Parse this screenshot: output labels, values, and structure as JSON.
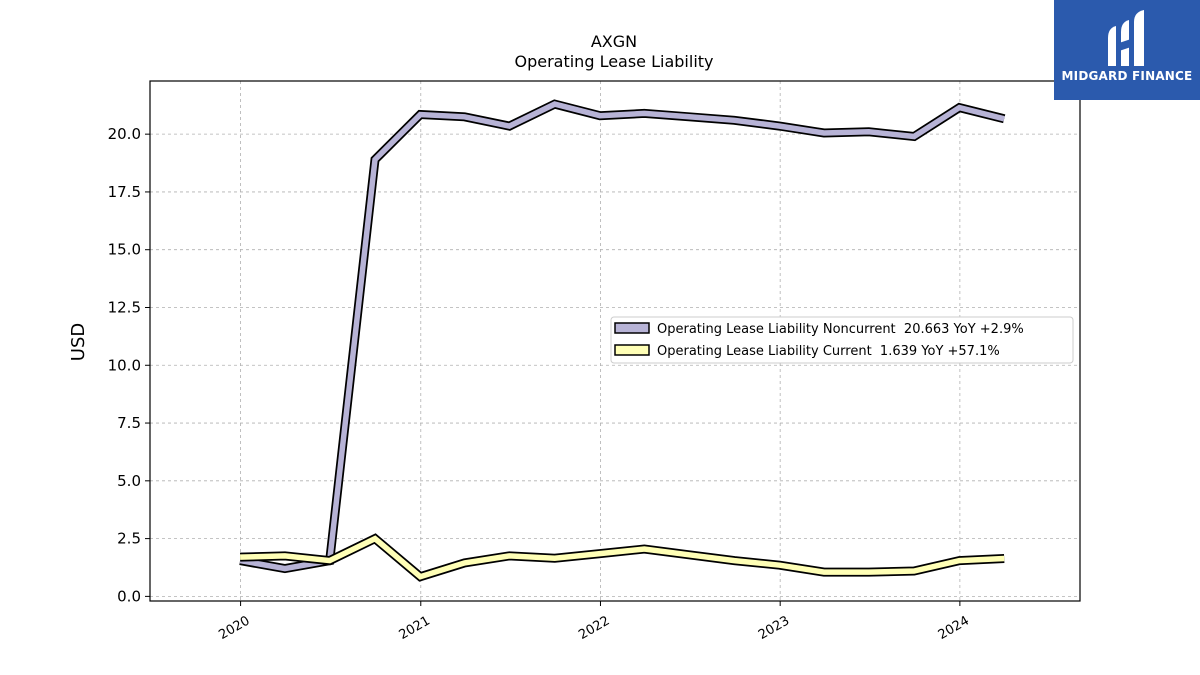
{
  "chart_data": {
    "type": "line",
    "title": "AXGN",
    "subtitle": "Operating Lease Liability",
    "xlabel": "",
    "ylabel": "USD",
    "ylim": [
      -0.2,
      22.3
    ],
    "yticks": [
      "0.0",
      "2.5",
      "5.0",
      "7.5",
      "10.0",
      "12.5",
      "15.0",
      "17.5",
      "20.0"
    ],
    "xticks": [
      "2020",
      "2021",
      "2022",
      "2023",
      "2024"
    ],
    "grid": true,
    "legend_position": "center-right",
    "x": [
      "2019-12-31",
      "2020-03-31",
      "2020-06-30",
      "2020-09-30",
      "2020-12-31",
      "2021-03-31",
      "2021-06-30",
      "2021-09-30",
      "2021-12-31",
      "2022-03-31",
      "2022-06-30",
      "2022-09-30",
      "2022-12-31",
      "2023-03-31",
      "2023-06-30",
      "2023-09-30",
      "2023-12-31",
      "2024-03-31"
    ],
    "series": [
      {
        "name": "Operating Lease Liability Noncurrent  20.663 YoY +2.9%",
        "color": "#b7b3d6",
        "values": [
          1.55,
          1.2,
          1.55,
          18.9,
          20.85,
          20.75,
          20.35,
          21.3,
          20.8,
          20.9,
          20.75,
          20.6,
          20.35,
          20.05,
          20.1,
          19.9,
          21.15,
          20.663
        ]
      },
      {
        "name": "Operating Lease Liability Current  1.639 YoY +57.1%",
        "color": "#ffffb6",
        "values": [
          1.7,
          1.75,
          1.55,
          2.5,
          0.85,
          1.45,
          1.75,
          1.65,
          1.85,
          2.05,
          1.8,
          1.55,
          1.35,
          1.05,
          1.05,
          1.1,
          1.55,
          1.639
        ]
      }
    ]
  },
  "logo": {
    "text": "MIDGARD FINANCE",
    "background": "#2b5aad"
  }
}
